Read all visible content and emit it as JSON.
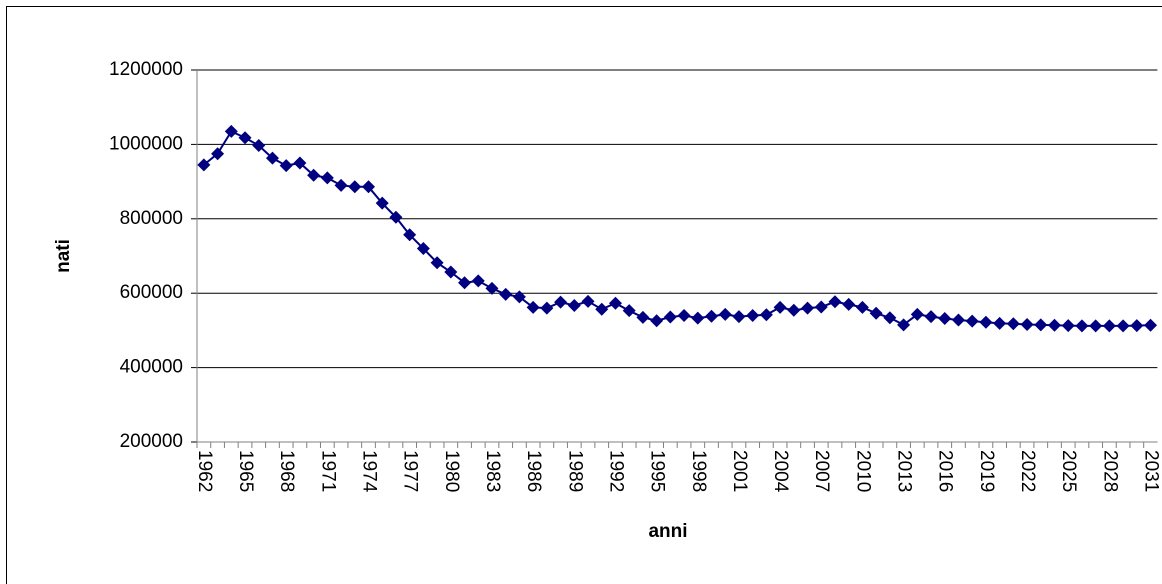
{
  "chart_data": {
    "type": "line",
    "x_label": "anni",
    "y_label": "nati",
    "categories": [
      "1962",
      null,
      null,
      "1965",
      null,
      null,
      "1968",
      null,
      null,
      "1971",
      null,
      null,
      "1974",
      null,
      null,
      "1977",
      null,
      null,
      "1980",
      null,
      null,
      "1983",
      null,
      null,
      "1986",
      null,
      null,
      "1989",
      null,
      null,
      "1992",
      null,
      null,
      "1995",
      null,
      null,
      "1998",
      null,
      null,
      "2001",
      null,
      null,
      "2004",
      null,
      null,
      "2007",
      null,
      null,
      "2010",
      null,
      null,
      "2013",
      null,
      null,
      "2016",
      null,
      null,
      "2019",
      null,
      null,
      "2022",
      null,
      null,
      "2025",
      null,
      null,
      "2028",
      null,
      null,
      "2031"
    ],
    "series": [
      {
        "color": "#000080",
        "values": [
          945000,
          975000,
          1035000,
          1018000,
          997000,
          963000,
          943000,
          950000,
          917000,
          910000,
          890000,
          886000,
          886000,
          842000,
          804000,
          757000,
          720000,
          682000,
          657000,
          628000,
          633000,
          613000,
          597000,
          590000,
          562000,
          560000,
          576000,
          567000,
          578000,
          557000,
          573000,
          553000,
          535000,
          526000,
          536000,
          540000,
          533000,
          538000,
          543000,
          537000,
          540000,
          542000,
          562000,
          554000,
          560000,
          563000,
          577000,
          570000,
          562000,
          546000,
          534000,
          515000,
          543000,
          537000,
          532000,
          528000,
          525000,
          522000,
          519000,
          518000,
          516000,
          515000,
          514000,
          513000,
          512000,
          512000,
          512000,
          512000,
          513000,
          514000
        ]
      }
    ],
    "ylim": [
      200000,
      1200000
    ],
    "yticks": [
      200000,
      400000,
      600000,
      800000,
      1000000,
      1200000
    ],
    "grid": true
  }
}
